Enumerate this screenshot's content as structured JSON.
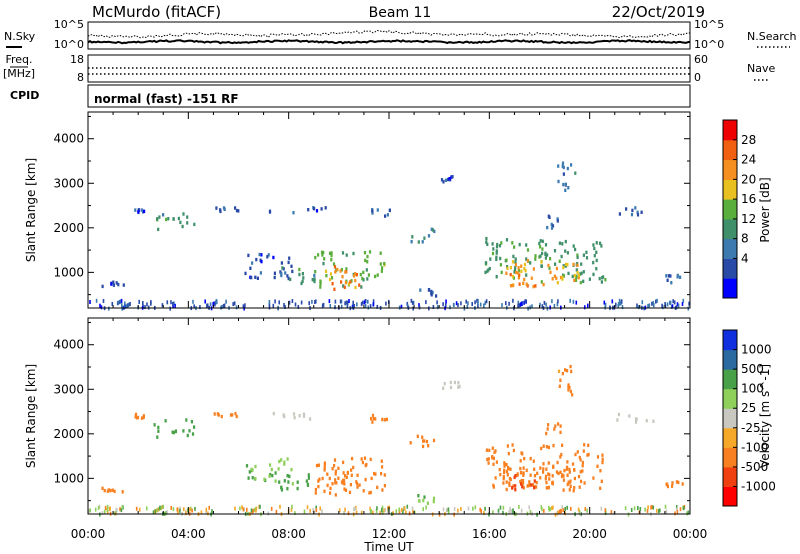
{
  "header": {
    "station": "McMurdo (fitACF)",
    "beam": "Beam 11",
    "date": "22/Oct/2019"
  },
  "status_panels": {
    "nsky_label": "N.Sky",
    "nsearch_label": "N.Search",
    "noise_ticks": [
      "10^5",
      "10^0"
    ],
    "freq_label_1": "Freq.",
    "freq_label_2": "[MHz]",
    "freq_ticks": [
      "18",
      "8"
    ],
    "nave_label": "Nave",
    "nave_ticks": [
      "60",
      "0"
    ],
    "cpid_label": "CPID",
    "cpid_text": "normal (fast) -151 RF"
  },
  "x_axis": {
    "label": "Time UT",
    "ticks": [
      "00:00",
      "04:00",
      "08:00",
      "12:00",
      "16:00",
      "20:00",
      "00:00"
    ]
  },
  "colors": {
    "power": [
      "#0000ff",
      "#2a4aa8",
      "#3c7ab0",
      "#3f8f6a",
      "#5aae3c",
      "#e8c020",
      "#f59020",
      "#f06010",
      "#ee0000"
    ],
    "velocity": [
      "#ff0000",
      "#f04010",
      "#f88020",
      "#f6a828",
      "#c8c8c0",
      "#8ed05a",
      "#48a048",
      "#2a6aa0",
      "#1030e0"
    ]
  },
  "chart_data": [
    {
      "type": "heatmap",
      "panel": "power",
      "ylabel": "Slant Range [km]",
      "xlabel": "Time UT",
      "xlim_hours": [
        0,
        24
      ],
      "ylim": [
        200,
        4600
      ],
      "y_ticks": [
        1000,
        2000,
        3000,
        4000
      ],
      "colorbar_label": "Power [dB]",
      "colorbar_ticks": [
        "28",
        "24",
        "20",
        "16",
        "12",
        "8",
        "4"
      ],
      "colorbar_range": [
        0,
        32
      ],
      "regions": [
        {
          "t0": 2.6,
          "t1": 4.2,
          "r0": 1950,
          "r1": 2350,
          "value": 14
        },
        {
          "t0": 1.8,
          "t1": 2.2,
          "r0": 2380,
          "r1": 2480,
          "value": 6
        },
        {
          "t0": 0.5,
          "t1": 1.4,
          "r0": 720,
          "r1": 820,
          "value": 6
        },
        {
          "t0": 5.0,
          "t1": 6.0,
          "r0": 2400,
          "r1": 2500,
          "value": 6
        },
        {
          "t0": 6.2,
          "t1": 8.2,
          "r0": 900,
          "r1": 1500,
          "value": 6
        },
        {
          "t0": 7.6,
          "t1": 9.0,
          "r0": 780,
          "r1": 1150,
          "value": 14
        },
        {
          "t0": 9.0,
          "t1": 11.8,
          "r0": 700,
          "r1": 1500,
          "value": 18
        },
        {
          "t0": 9.6,
          "t1": 10.9,
          "r0": 650,
          "r1": 1200,
          "value": 28
        },
        {
          "t0": 7.0,
          "t1": 9.5,
          "r0": 2350,
          "r1": 2500,
          "value": 6
        },
        {
          "t0": 11.2,
          "t1": 12.0,
          "r0": 2300,
          "r1": 2450,
          "value": 7
        },
        {
          "t0": 12.8,
          "t1": 13.8,
          "r0": 1700,
          "r1": 2050,
          "value": 12
        },
        {
          "t0": 13.1,
          "t1": 13.9,
          "r0": 450,
          "r1": 650,
          "value": 8
        },
        {
          "t0": 14.0,
          "t1": 14.8,
          "r0": 3050,
          "r1": 3200,
          "value": 6
        },
        {
          "t0": 15.8,
          "t1": 20.6,
          "r0": 800,
          "r1": 1800,
          "value": 15
        },
        {
          "t0": 16.6,
          "t1": 19.6,
          "r0": 750,
          "r1": 1300,
          "value": 24
        },
        {
          "t0": 16.8,
          "t1": 17.8,
          "r0": 700,
          "r1": 1150,
          "value": 28
        },
        {
          "t0": 18.2,
          "t1": 18.8,
          "r0": 2000,
          "r1": 2300,
          "value": 7
        },
        {
          "t0": 18.6,
          "t1": 19.4,
          "r0": 2850,
          "r1": 3550,
          "value": 10
        },
        {
          "t0": 21.0,
          "t1": 22.5,
          "r0": 2300,
          "r1": 2500,
          "value": 8
        },
        {
          "t0": 23.0,
          "t1": 23.8,
          "r0": 800,
          "r1": 1000,
          "value": 6
        }
      ]
    },
    {
      "type": "heatmap",
      "panel": "velocity",
      "ylabel": "Slant Range [km]",
      "xlabel": "Time UT",
      "xlim_hours": [
        0,
        24
      ],
      "ylim": [
        200,
        4600
      ],
      "y_ticks": [
        1000,
        2000,
        3000,
        4000
      ],
      "colorbar_label": "Velocity [m s^-1]",
      "colorbar_ticks": [
        "1000",
        "500",
        "100",
        "25",
        "-25",
        "-100",
        "-500",
        "-1000"
      ],
      "regions": [
        {
          "t0": 2.6,
          "t1": 4.2,
          "r0": 1950,
          "r1": 2350,
          "value": 300
        },
        {
          "t0": 1.8,
          "t1": 2.2,
          "r0": 2380,
          "r1": 2480,
          "value": -150
        },
        {
          "t0": 0.5,
          "t1": 1.4,
          "r0": 720,
          "r1": 820,
          "value": -150
        },
        {
          "t0": 5.0,
          "t1": 6.0,
          "r0": 2400,
          "r1": 2500,
          "value": -150
        },
        {
          "t0": 6.2,
          "t1": 8.2,
          "r0": 900,
          "r1": 1500,
          "value": 80
        },
        {
          "t0": 7.6,
          "t1": 9.0,
          "r0": 780,
          "r1": 1150,
          "value": 300
        },
        {
          "t0": 9.0,
          "t1": 11.8,
          "r0": 700,
          "r1": 1500,
          "value": -200
        },
        {
          "t0": 9.6,
          "t1": 10.9,
          "r0": 650,
          "r1": 1200,
          "value": -300
        },
        {
          "t0": 7.0,
          "t1": 9.5,
          "r0": 2350,
          "r1": 2500,
          "value": 0
        },
        {
          "t0": 11.2,
          "t1": 12.0,
          "r0": 2300,
          "r1": 2450,
          "value": -150
        },
        {
          "t0": 12.8,
          "t1": 13.8,
          "r0": 1700,
          "r1": 2050,
          "value": -200
        },
        {
          "t0": 13.1,
          "t1": 13.9,
          "r0": 450,
          "r1": 650,
          "value": 80
        },
        {
          "t0": 14.0,
          "t1": 14.8,
          "r0": 3050,
          "r1": 3200,
          "value": 0
        },
        {
          "t0": 15.8,
          "t1": 20.6,
          "r0": 800,
          "r1": 1800,
          "value": -250
        },
        {
          "t0": 16.6,
          "t1": 19.6,
          "r0": 750,
          "r1": 1300,
          "value": -300
        },
        {
          "t0": 16.8,
          "t1": 17.8,
          "r0": 700,
          "r1": 1150,
          "value": -600
        },
        {
          "t0": 18.2,
          "t1": 18.8,
          "r0": 2000,
          "r1": 2300,
          "value": -150
        },
        {
          "t0": 18.6,
          "t1": 19.4,
          "r0": 2850,
          "r1": 3550,
          "value": -150
        },
        {
          "t0": 21.0,
          "t1": 22.5,
          "r0": 2300,
          "r1": 2500,
          "value": 0
        },
        {
          "t0": 23.0,
          "t1": 23.8,
          "r0": 800,
          "r1": 1000,
          "value": -150
        }
      ]
    }
  ]
}
